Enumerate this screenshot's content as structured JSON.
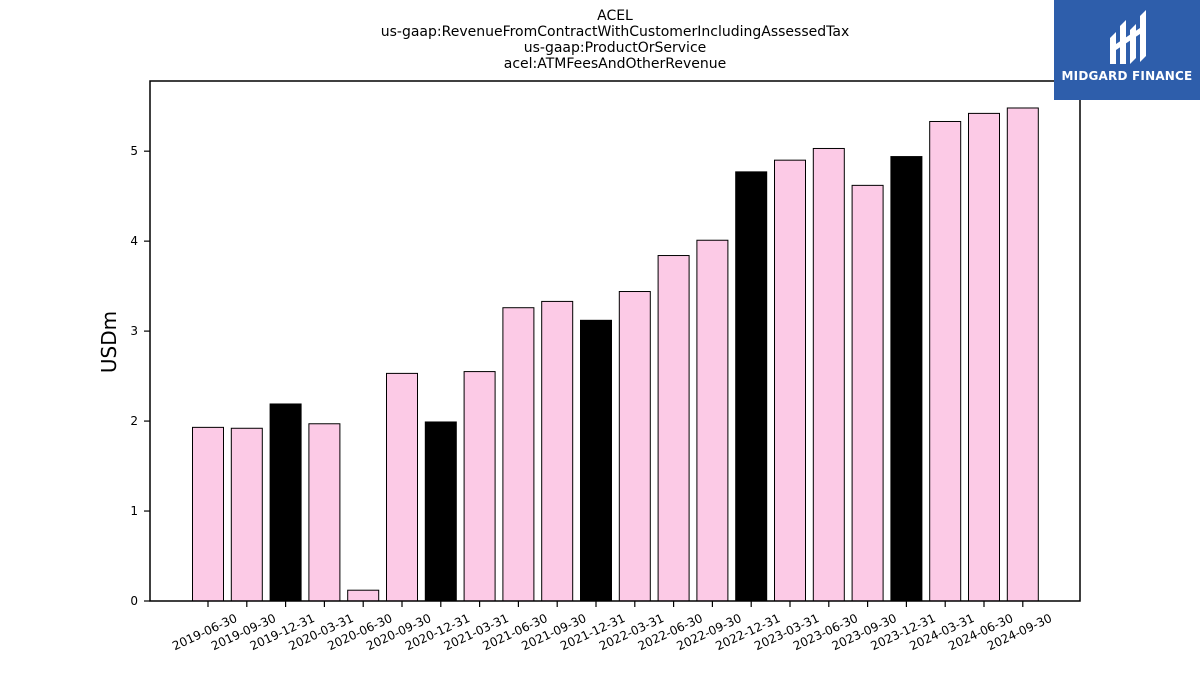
{
  "chart_data": {
    "type": "bar",
    "title_lines": [
      "ACEL",
      "us-gaap:RevenueFromContractWithCustomerIncludingAssessedTax",
      "us-gaap:ProductOrService",
      "acel:ATMFeesAndOtherRevenue"
    ],
    "xlabel": "",
    "ylabel": "USDm",
    "ylim": [
      0,
      5.78
    ],
    "yticks": [
      0,
      1,
      2,
      3,
      4,
      5
    ],
    "grid": false,
    "categories": [
      "2019-06-30",
      "2019-09-30",
      "2019-12-31",
      "2020-03-31",
      "2020-06-30",
      "2020-09-30",
      "2020-12-31",
      "2021-03-31",
      "2021-06-30",
      "2021-09-30",
      "2021-12-31",
      "2022-03-31",
      "2022-06-30",
      "2022-09-30",
      "2022-12-31",
      "2023-03-31",
      "2023-06-30",
      "2023-09-30",
      "2023-12-31",
      "2024-03-31",
      "2024-06-30",
      "2024-09-30"
    ],
    "values": [
      1.93,
      1.92,
      2.19,
      1.97,
      0.12,
      2.53,
      1.99,
      2.55,
      3.26,
      3.33,
      3.12,
      3.44,
      3.84,
      4.01,
      4.77,
      4.9,
      5.03,
      4.62,
      4.94,
      5.33,
      5.42,
      5.48
    ],
    "bar_colors": [
      "#fccae6",
      "#fccae6",
      "#000000",
      "#fccae6",
      "#fccae6",
      "#fccae6",
      "#000000",
      "#fccae6",
      "#fccae6",
      "#fccae6",
      "#000000",
      "#fccae6",
      "#fccae6",
      "#fccae6",
      "#000000",
      "#fccae6",
      "#fccae6",
      "#fccae6",
      "#000000",
      "#fccae6",
      "#fccae6",
      "#fccae6"
    ]
  },
  "logo": {
    "text": "MIDGARD FINANCE",
    "background": "#2e5eab",
    "foreground": "#ffffff"
  }
}
